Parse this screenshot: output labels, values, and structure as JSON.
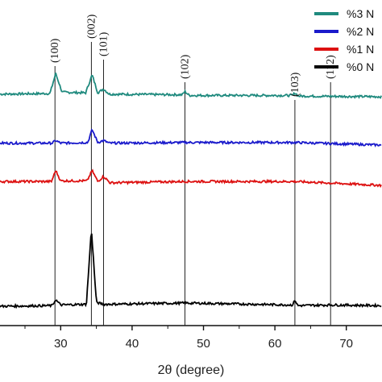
{
  "chart_data": {
    "type": "line",
    "xlabel": "2θ (degree)",
    "xlim": [
      21.5,
      75
    ],
    "x_ticks": [
      "30",
      "40",
      "50",
      "60",
      "70"
    ],
    "x_tick_values": [
      30,
      40,
      50,
      60,
      70
    ],
    "ylabel": "",
    "y_ticks": false,
    "legend": {
      "placement": "top-right",
      "entries": [
        "%3 N",
        "%2 N",
        "%1 N",
        "%0 N"
      ]
    },
    "series": [
      {
        "name": "%3 N",
        "color": "#1f8a7e",
        "offset": 3.0,
        "points": [
          [
            21.5,
            0.04
          ],
          [
            28.5,
            0.05
          ],
          [
            29.3,
            0.36
          ],
          [
            30.2,
            0.07
          ],
          [
            33.5,
            0.06
          ],
          [
            34.4,
            0.34
          ],
          [
            35.2,
            0.06
          ],
          [
            36.0,
            0.12
          ],
          [
            36.8,
            0.04
          ],
          [
            47.0,
            0.03
          ],
          [
            47.4,
            0.08
          ],
          [
            48.0,
            0.02
          ],
          [
            62.5,
            0.02
          ],
          [
            62.8,
            0.06
          ],
          [
            63.3,
            0.01
          ],
          [
            75,
            0.0
          ]
        ]
      },
      {
        "name": "%2 N",
        "color": "#1a1acb",
        "offset": 2.0,
        "points": [
          [
            21.5,
            0.03
          ],
          [
            28.8,
            0.03
          ],
          [
            29.3,
            0.07
          ],
          [
            30.0,
            0.03
          ],
          [
            33.8,
            0.04
          ],
          [
            34.4,
            0.24
          ],
          [
            35.2,
            0.04
          ],
          [
            36.0,
            0.07
          ],
          [
            36.8,
            0.03
          ],
          [
            47.4,
            0.04
          ],
          [
            62.8,
            0.04
          ],
          [
            75,
            0.0
          ]
        ]
      },
      {
        "name": "%1 N",
        "color": "#dd1111",
        "offset": 1.0,
        "points": [
          [
            21.5,
            0.06
          ],
          [
            28.7,
            0.06
          ],
          [
            29.3,
            0.23
          ],
          [
            30.0,
            0.07
          ],
          [
            33.7,
            0.07
          ],
          [
            34.4,
            0.23
          ],
          [
            35.2,
            0.06
          ],
          [
            36.0,
            0.14
          ],
          [
            36.9,
            0.04
          ],
          [
            47.4,
            0.06
          ],
          [
            62.8,
            0.06
          ],
          [
            75,
            0.0
          ]
        ]
      },
      {
        "name": "%0 N",
        "color": "#000000",
        "offset": 0.0,
        "points": [
          [
            21.5,
            0.0
          ],
          [
            28.8,
            0.01
          ],
          [
            29.3,
            0.1
          ],
          [
            30.0,
            0.02
          ],
          [
            33.6,
            0.03
          ],
          [
            34.3,
            1.2
          ],
          [
            35.0,
            0.06
          ],
          [
            36.0,
            0.03
          ],
          [
            47.4,
            0.05
          ],
          [
            62.5,
            0.02
          ],
          [
            62.8,
            0.1
          ],
          [
            63.2,
            0.01
          ],
          [
            67.9,
            0.02
          ],
          [
            75,
            0.01
          ]
        ]
      }
    ],
    "reference_lines": [
      {
        "x": 29.2,
        "label": "(100)"
      },
      {
        "x": 34.3,
        "label": "(002)"
      },
      {
        "x": 36.0,
        "label": "(101)"
      },
      {
        "x": 47.4,
        "label": "(102)"
      },
      {
        "x": 62.8,
        "label": "(103)"
      },
      {
        "x": 67.8,
        "label": "(112)"
      }
    ]
  }
}
